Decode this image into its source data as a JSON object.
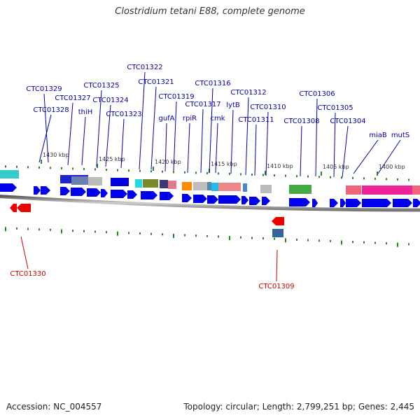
{
  "title": "Clostridium tetani E88, complete genome",
  "footer": {
    "accession": "Accession: NC_004557",
    "stats": "Topology: circular; Length: 2,799,251 bp; Genes: 2,445"
  },
  "colors": {
    "forward_label": "#0000aa",
    "reverse_label": "#cc0000",
    "forward_gene": "#0000ee",
    "reverse_gene": "#ee0000",
    "tick": "#228822",
    "backbone": "#888888"
  },
  "kbp_labels": [
    "1430 kbp",
    "1425 kbp",
    "1420 kbp",
    "1415 kbp",
    "1410 kbp",
    "1405 kbp",
    "1400 kbp"
  ],
  "forward_labels": [
    "CTC01329",
    "CTC01328",
    "CTC01327",
    "thiH",
    "CTC01325",
    "CTC01324",
    "CTC01323",
    "CTC01322",
    "CTC01321",
    "CTC01319",
    "gufA",
    "rpiR",
    "CTC01317",
    "CTC01316",
    "cmk",
    "lytB",
    "CTC01312",
    "CTC01311",
    "CTC01310",
    "CTC01308",
    "CTC01306",
    "CTC01305",
    "CTC01304",
    "miaB",
    "mutS"
  ],
  "reverse_labels": [
    "CTC01330",
    "CTC01309"
  ]
}
